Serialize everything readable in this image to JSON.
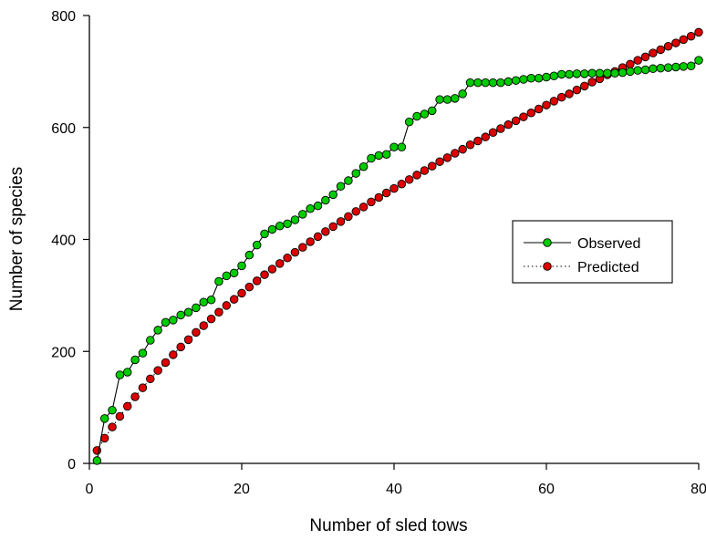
{
  "chart_data": {
    "type": "line",
    "xlabel": "Number of sled tows",
    "ylabel": "Number of species",
    "xlim": [
      0,
      80
    ],
    "ylim": [
      0,
      800
    ],
    "xticks": [
      0,
      20,
      40,
      60,
      80
    ],
    "yticks": [
      0,
      200,
      400,
      600,
      800
    ],
    "grid": false,
    "legend_position": "center-right",
    "series": [
      {
        "name": "Observed",
        "line_style": "solid",
        "marker_color": "#00cc00",
        "x": [
          1,
          2,
          3,
          4,
          5,
          6,
          7,
          8,
          9,
          10,
          11,
          12,
          13,
          14,
          15,
          16,
          17,
          18,
          19,
          20,
          21,
          22,
          23,
          24,
          25,
          26,
          27,
          28,
          29,
          30,
          31,
          32,
          33,
          34,
          35,
          36,
          37,
          38,
          39,
          40,
          41,
          42,
          43,
          44,
          45,
          46,
          47,
          48,
          49,
          50,
          51,
          52,
          53,
          54,
          55,
          56,
          57,
          58,
          59,
          60,
          61,
          62,
          63,
          64,
          65,
          66,
          67,
          68,
          69,
          70,
          71,
          72,
          73,
          74,
          75,
          76,
          77,
          78,
          79,
          80
        ],
        "values": [
          5,
          80,
          95,
          158,
          163,
          185,
          197,
          220,
          238,
          252,
          256,
          265,
          270,
          278,
          288,
          292,
          325,
          335,
          340,
          353,
          372,
          390,
          410,
          418,
          424,
          428,
          435,
          445,
          455,
          460,
          470,
          480,
          495,
          505,
          518,
          530,
          545,
          550,
          552,
          565,
          565,
          610,
          620,
          624,
          630,
          650,
          650,
          652,
          660,
          680,
          680,
          680,
          680,
          680,
          682,
          684,
          686,
          688,
          688,
          690,
          692,
          695,
          695,
          696,
          696,
          697,
          697,
          697,
          697,
          698,
          700,
          702,
          703,
          705,
          706,
          707,
          708,
          709,
          710,
          720
        ]
      },
      {
        "name": "Predicted",
        "line_style": "dotted",
        "marker_color": "#dd0000",
        "x": [
          1,
          2,
          3,
          4,
          5,
          6,
          7,
          8,
          9,
          10,
          11,
          12,
          13,
          14,
          15,
          16,
          17,
          18,
          19,
          20,
          21,
          22,
          23,
          24,
          25,
          26,
          27,
          28,
          29,
          30,
          31,
          32,
          33,
          34,
          35,
          36,
          37,
          38,
          39,
          40,
          41,
          42,
          43,
          44,
          45,
          46,
          47,
          48,
          49,
          50,
          51,
          52,
          53,
          54,
          55,
          56,
          57,
          58,
          59,
          60,
          61,
          62,
          63,
          64,
          65,
          66,
          67,
          68,
          69,
          70,
          71,
          72,
          73,
          74,
          75,
          76,
          77,
          78,
          79,
          80
        ],
        "values": [
          23,
          45,
          65,
          84,
          102,
          119,
          135,
          151,
          166,
          180,
          194,
          208,
          221,
          234,
          246,
          258,
          270,
          282,
          293,
          304,
          315,
          326,
          337,
          347,
          357,
          367,
          377,
          386,
          396,
          405,
          414,
          423,
          432,
          441,
          450,
          458,
          467,
          475,
          483,
          491,
          499,
          507,
          515,
          523,
          531,
          539,
          546,
          554,
          561,
          569,
          576,
          583,
          591,
          598,
          605,
          612,
          619,
          626,
          633,
          640,
          647,
          654,
          660,
          667,
          674,
          681,
          687,
          694,
          700,
          707,
          713,
          720,
          726,
          733,
          739,
          745,
          751,
          757,
          763,
          770
        ]
      }
    ]
  }
}
